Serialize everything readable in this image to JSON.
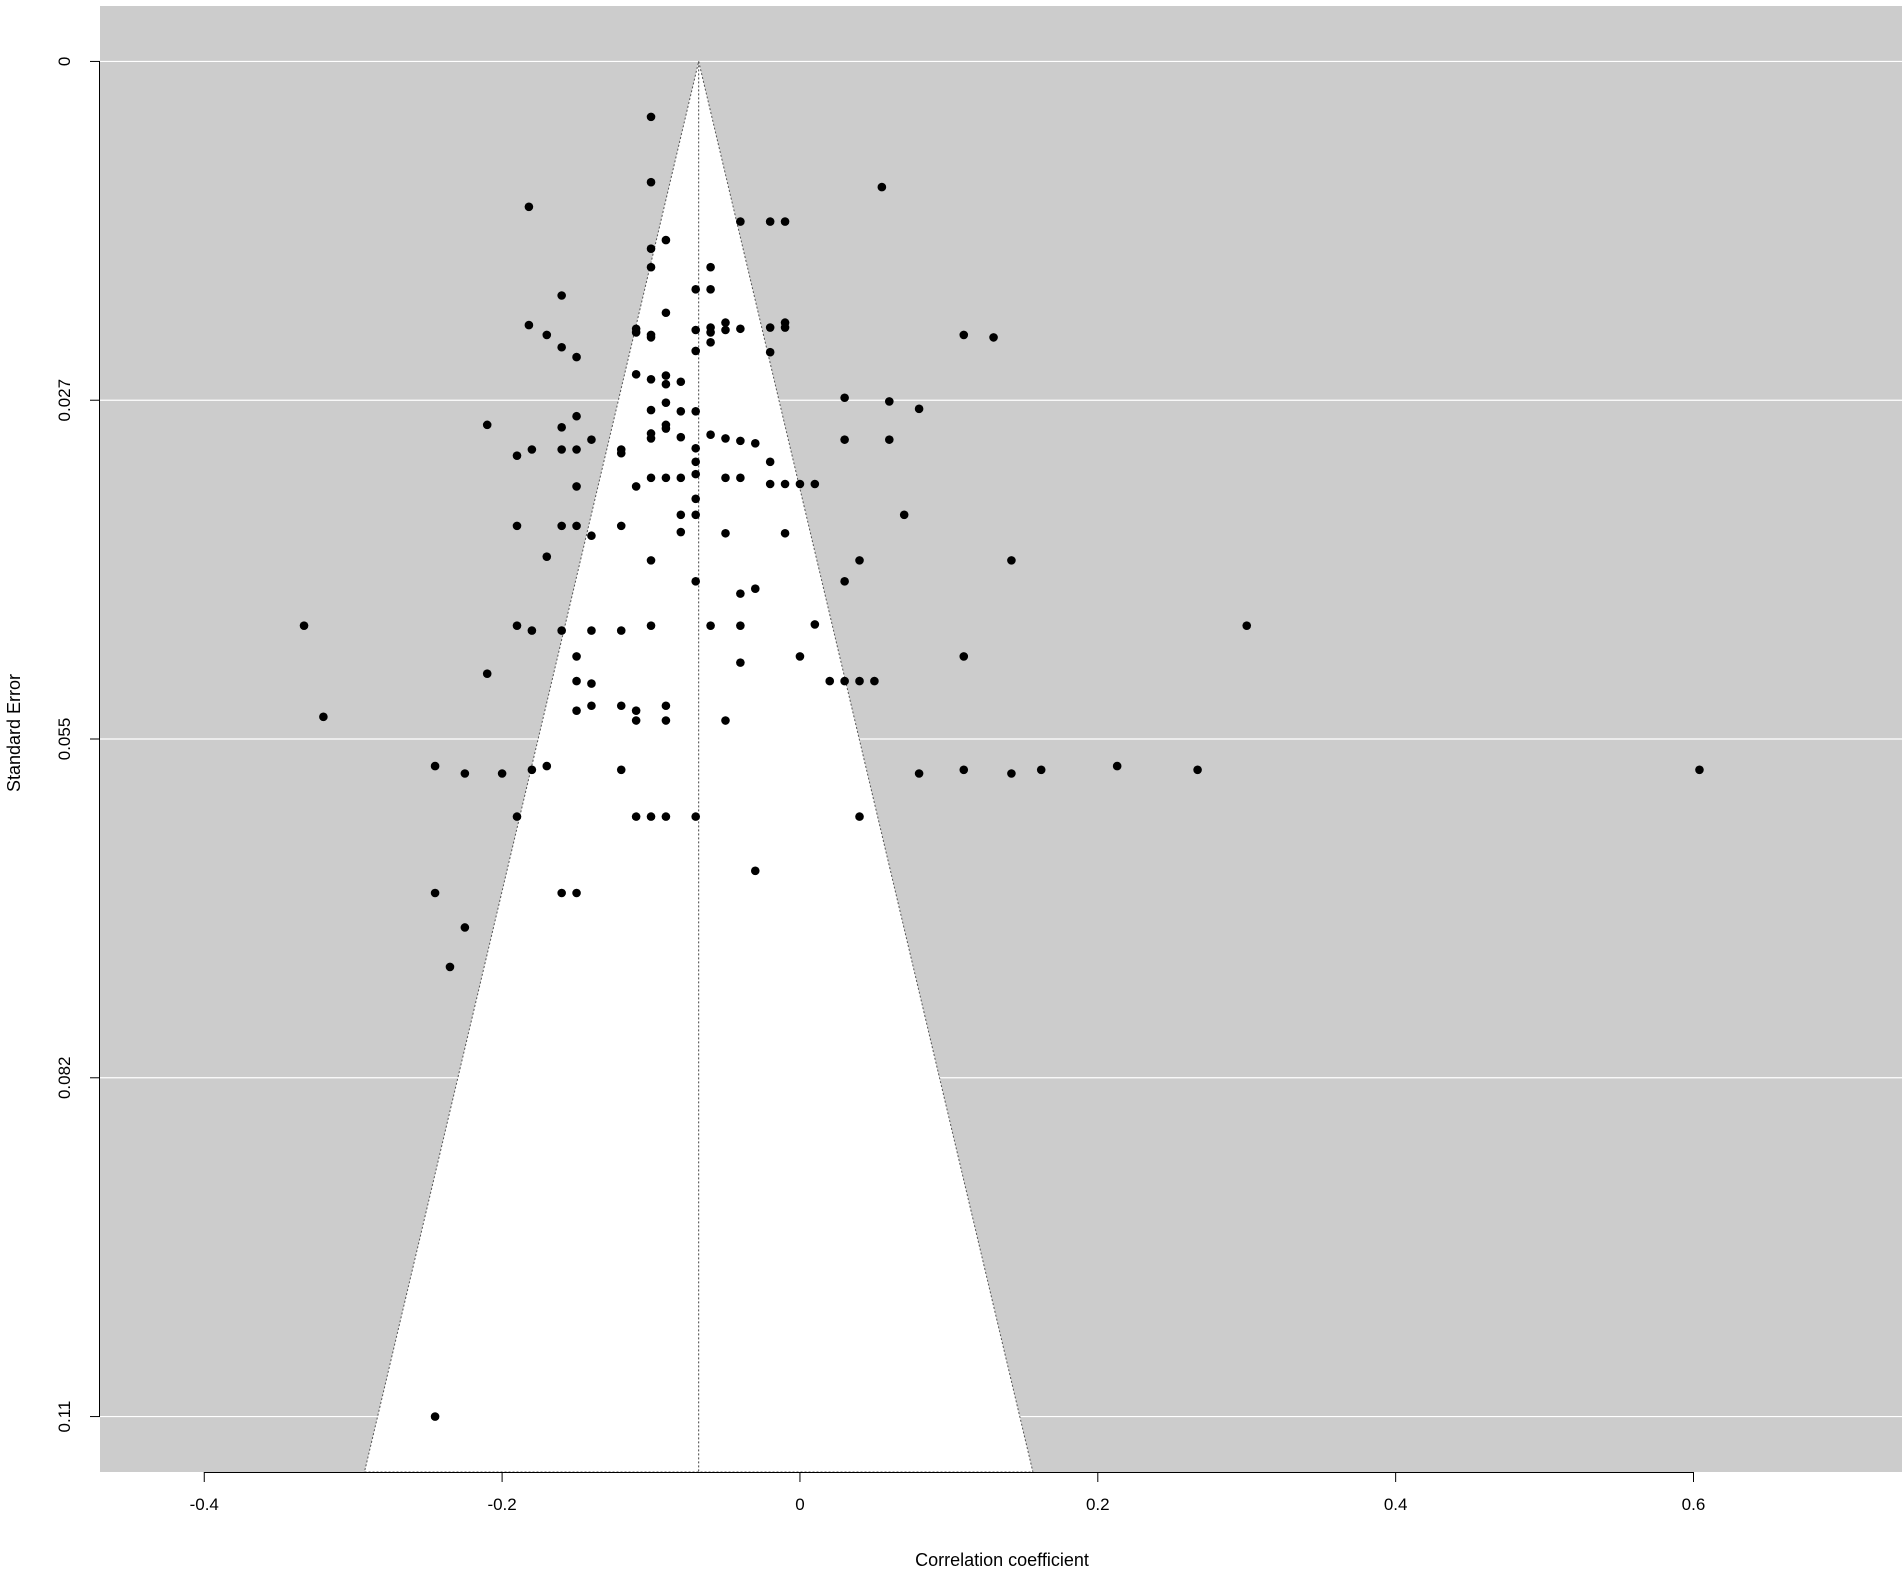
{
  "chart_data": {
    "type": "scatter",
    "subtype": "funnel",
    "title": "",
    "xlabel": "Correlation coefficient",
    "ylabel": "Standard Error",
    "xlim": [
      -0.47,
      0.74
    ],
    "ylim": [
      0.1145,
      -0.0045
    ],
    "y_reversed": true,
    "xticks": [
      -0.4,
      -0.2,
      0,
      0.2,
      0.4,
      0.6
    ],
    "xtick_labels": [
      "-0.4",
      "-0.2",
      "0",
      "0.2",
      "0.4",
      "0.6"
    ],
    "yticks": [
      0,
      0.0275,
      0.055,
      0.0825,
      0.11
    ],
    "ytick_labels": [
      "0",
      "0.027",
      "0.055",
      "0.082",
      "0.11"
    ],
    "grid": true,
    "summary_estimate": -0.068,
    "funnel_z": 1.96,
    "colors": {
      "panel_background": "#cccccc",
      "funnel_fill": "#ffffff",
      "grid": "#ffffff",
      "points": "#000000",
      "funnel_lines": "#555555"
    },
    "points": [
      [
        -0.1,
        0.0045
      ],
      [
        -0.1,
        0.0098
      ],
      [
        0.055,
        0.0102
      ],
      [
        -0.182,
        0.0118
      ],
      [
        -0.04,
        0.013
      ],
      [
        -0.02,
        0.013
      ],
      [
        -0.01,
        0.013
      ],
      [
        -0.09,
        0.0145
      ],
      [
        -0.1,
        0.0152
      ],
      [
        -0.1,
        0.0167
      ],
      [
        -0.06,
        0.0167
      ],
      [
        -0.07,
        0.0185
      ],
      [
        -0.06,
        0.0185
      ],
      [
        -0.16,
        0.019
      ],
      [
        -0.09,
        0.0204
      ],
      [
        -0.182,
        0.0214
      ],
      [
        -0.17,
        0.0222
      ],
      [
        -0.16,
        0.0232
      ],
      [
        -0.15,
        0.024
      ],
      [
        -0.11,
        0.0217
      ],
      [
        -0.11,
        0.022
      ],
      [
        -0.1,
        0.0222
      ],
      [
        -0.1,
        0.0224
      ],
      [
        -0.07,
        0.0218
      ],
      [
        -0.06,
        0.0216
      ],
      [
        -0.06,
        0.022
      ],
      [
        -0.05,
        0.0212
      ],
      [
        -0.05,
        0.0218
      ],
      [
        -0.04,
        0.0217
      ],
      [
        -0.02,
        0.0216
      ],
      [
        -0.01,
        0.0212
      ],
      [
        -0.01,
        0.0216
      ],
      [
        -0.07,
        0.0235
      ],
      [
        -0.06,
        0.0228
      ],
      [
        -0.02,
        0.0236
      ],
      [
        0.11,
        0.0222
      ],
      [
        0.13,
        0.0224
      ],
      [
        -0.11,
        0.0254
      ],
      [
        -0.1,
        0.0258
      ],
      [
        -0.09,
        0.0255
      ],
      [
        -0.09,
        0.0262
      ],
      [
        -0.08,
        0.026
      ],
      [
        -0.09,
        0.0277
      ],
      [
        -0.1,
        0.0283
      ],
      [
        -0.08,
        0.0284
      ],
      [
        -0.07,
        0.0284
      ],
      [
        -0.09,
        0.0295
      ],
      [
        -0.1,
        0.0302
      ],
      [
        -0.1,
        0.0306
      ],
      [
        -0.09,
        0.0298
      ],
      [
        -0.08,
        0.0305
      ],
      [
        -0.06,
        0.0303
      ],
      [
        -0.05,
        0.0306
      ],
      [
        -0.04,
        0.0308
      ],
      [
        -0.03,
        0.031
      ],
      [
        -0.02,
        0.0325
      ],
      [
        -0.21,
        0.0295
      ],
      [
        -0.16,
        0.0297
      ],
      [
        -0.15,
        0.0288
      ],
      [
        -0.14,
        0.0307
      ],
      [
        -0.19,
        0.032
      ],
      [
        -0.18,
        0.0315
      ],
      [
        -0.16,
        0.0315
      ],
      [
        -0.15,
        0.0315
      ],
      [
        -0.12,
        0.0315
      ],
      [
        -0.12,
        0.0318
      ],
      [
        -0.07,
        0.0314
      ],
      [
        -0.07,
        0.0325
      ],
      [
        -0.11,
        0.0345
      ],
      [
        -0.1,
        0.0338
      ],
      [
        -0.09,
        0.0338
      ],
      [
        -0.08,
        0.0338
      ],
      [
        -0.07,
        0.0335
      ],
      [
        -0.05,
        0.0338
      ],
      [
        -0.04,
        0.0338
      ],
      [
        -0.02,
        0.0343
      ],
      [
        -0.01,
        0.0343
      ],
      [
        0.0,
        0.0343
      ],
      [
        0.01,
        0.0343
      ],
      [
        -0.15,
        0.0345
      ],
      [
        -0.07,
        0.0355
      ],
      [
        -0.08,
        0.0368
      ],
      [
        -0.07,
        0.0368
      ],
      [
        0.03,
        0.0273
      ],
      [
        0.06,
        0.0276
      ],
      [
        0.08,
        0.0282
      ],
      [
        0.03,
        0.0307
      ],
      [
        0.06,
        0.0307
      ],
      [
        -0.19,
        0.0377
      ],
      [
        -0.16,
        0.0377
      ],
      [
        -0.15,
        0.0377
      ],
      [
        -0.14,
        0.0385
      ],
      [
        -0.12,
        0.0377
      ],
      [
        -0.08,
        0.0382
      ],
      [
        -0.05,
        0.0383
      ],
      [
        -0.01,
        0.0383
      ],
      [
        -0.17,
        0.0402
      ],
      [
        -0.1,
        0.0405
      ],
      [
        0.07,
        0.0368
      ],
      [
        0.04,
        0.0405
      ],
      [
        0.142,
        0.0405
      ],
      [
        -0.07,
        0.0422
      ],
      [
        0.03,
        0.0422
      ],
      [
        -0.04,
        0.0432
      ],
      [
        -0.03,
        0.0428
      ],
      [
        -0.333,
        0.0458
      ],
      [
        -0.19,
        0.0458
      ],
      [
        -0.18,
        0.0462
      ],
      [
        -0.16,
        0.0462
      ],
      [
        -0.14,
        0.0462
      ],
      [
        -0.12,
        0.0462
      ],
      [
        -0.1,
        0.0458
      ],
      [
        -0.06,
        0.0458
      ],
      [
        -0.04,
        0.0458
      ],
      [
        0.01,
        0.0457
      ],
      [
        0.3,
        0.0458
      ],
      [
        -0.15,
        0.0483
      ],
      [
        -0.04,
        0.0488
      ],
      [
        0.0,
        0.0483
      ],
      [
        0.11,
        0.0483
      ],
      [
        -0.21,
        0.0497
      ],
      [
        -0.15,
        0.0503
      ],
      [
        -0.14,
        0.0505
      ],
      [
        0.02,
        0.0503
      ],
      [
        0.03,
        0.0503
      ],
      [
        0.04,
        0.0503
      ],
      [
        0.05,
        0.0503
      ],
      [
        -0.15,
        0.0527
      ],
      [
        -0.14,
        0.0523
      ],
      [
        -0.12,
        0.0523
      ],
      [
        -0.11,
        0.0527
      ],
      [
        -0.09,
        0.0523
      ],
      [
        -0.11,
        0.0535
      ],
      [
        -0.09,
        0.0535
      ],
      [
        -0.05,
        0.0535
      ],
      [
        -0.32,
        0.0532
      ],
      [
        -0.245,
        0.0572
      ],
      [
        -0.225,
        0.0578
      ],
      [
        -0.2,
        0.0578
      ],
      [
        -0.18,
        0.0575
      ],
      [
        -0.17,
        0.0572
      ],
      [
        -0.12,
        0.0575
      ],
      [
        0.08,
        0.0578
      ],
      [
        0.11,
        0.0575
      ],
      [
        0.142,
        0.0578
      ],
      [
        0.162,
        0.0575
      ],
      [
        0.213,
        0.0572
      ],
      [
        0.267,
        0.0575
      ],
      [
        0.604,
        0.0575
      ],
      [
        -0.19,
        0.0613
      ],
      [
        -0.11,
        0.0613
      ],
      [
        -0.1,
        0.0613
      ],
      [
        -0.09,
        0.0613
      ],
      [
        -0.07,
        0.0613
      ],
      [
        0.04,
        0.0613
      ],
      [
        -0.03,
        0.0657
      ],
      [
        -0.245,
        0.0675
      ],
      [
        -0.16,
        0.0675
      ],
      [
        -0.15,
        0.0675
      ],
      [
        -0.225,
        0.0703
      ],
      [
        -0.235,
        0.0735
      ],
      [
        -0.245,
        0.11
      ]
    ]
  }
}
